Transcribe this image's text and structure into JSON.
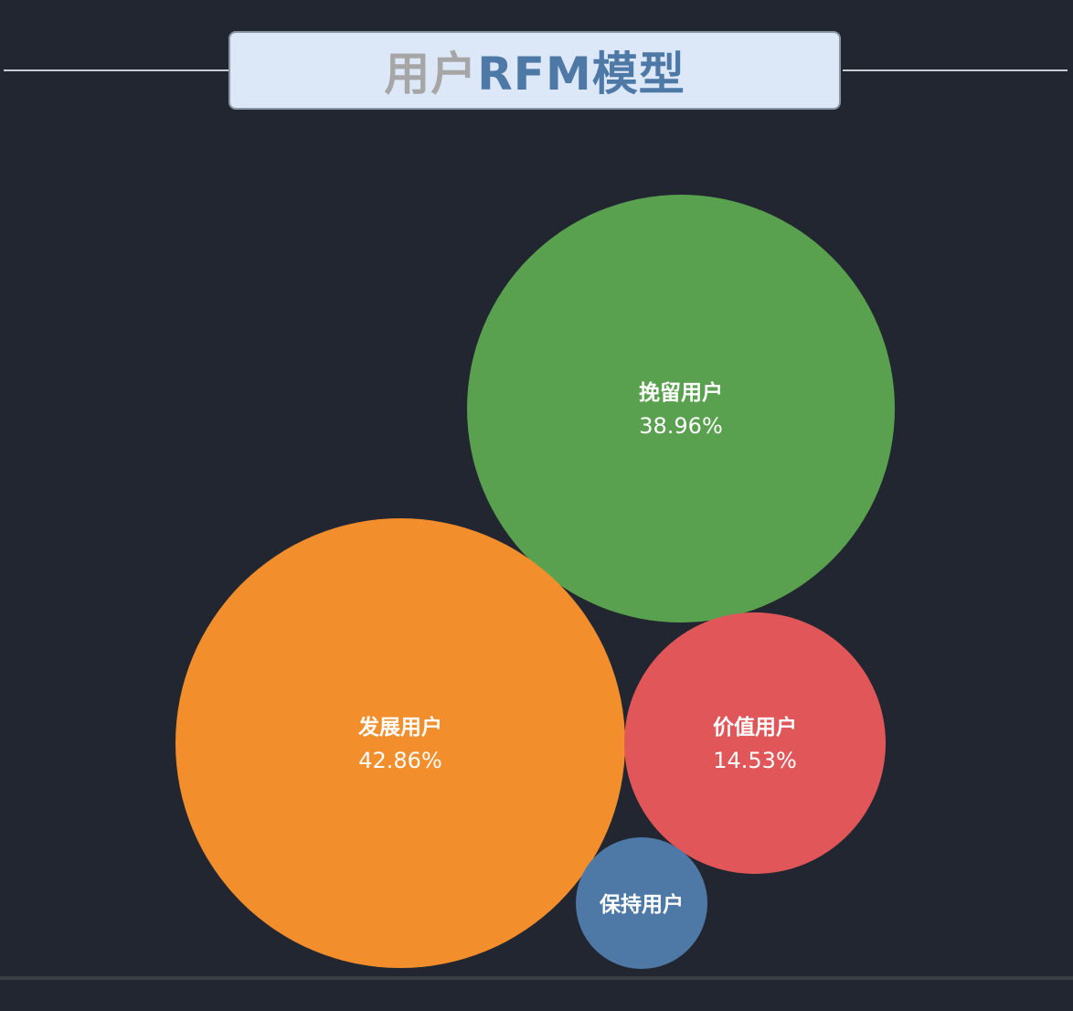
{
  "header": {
    "title_part1": "用户",
    "title_part2": "RFM模型"
  },
  "colors": {
    "background": "#222630",
    "title_box_bg": "#dce8f7",
    "title_gray": "#a6a6a6",
    "title_blue": "#4e79a7"
  },
  "chart_data": {
    "type": "bubble",
    "title": "用户RFM模型",
    "series": [
      {
        "name": "挽留用户",
        "label": "38.96%",
        "value": 38.96,
        "color": "#59a14f"
      },
      {
        "name": "发展用户",
        "label": "42.86%",
        "value": 42.86,
        "color": "#f28e2b"
      },
      {
        "name": "价值用户",
        "label": "14.53%",
        "value": 14.53,
        "color": "#e15759"
      },
      {
        "name": "保持用户",
        "label": "",
        "value": 3.65,
        "color": "#4e79a7"
      }
    ]
  }
}
